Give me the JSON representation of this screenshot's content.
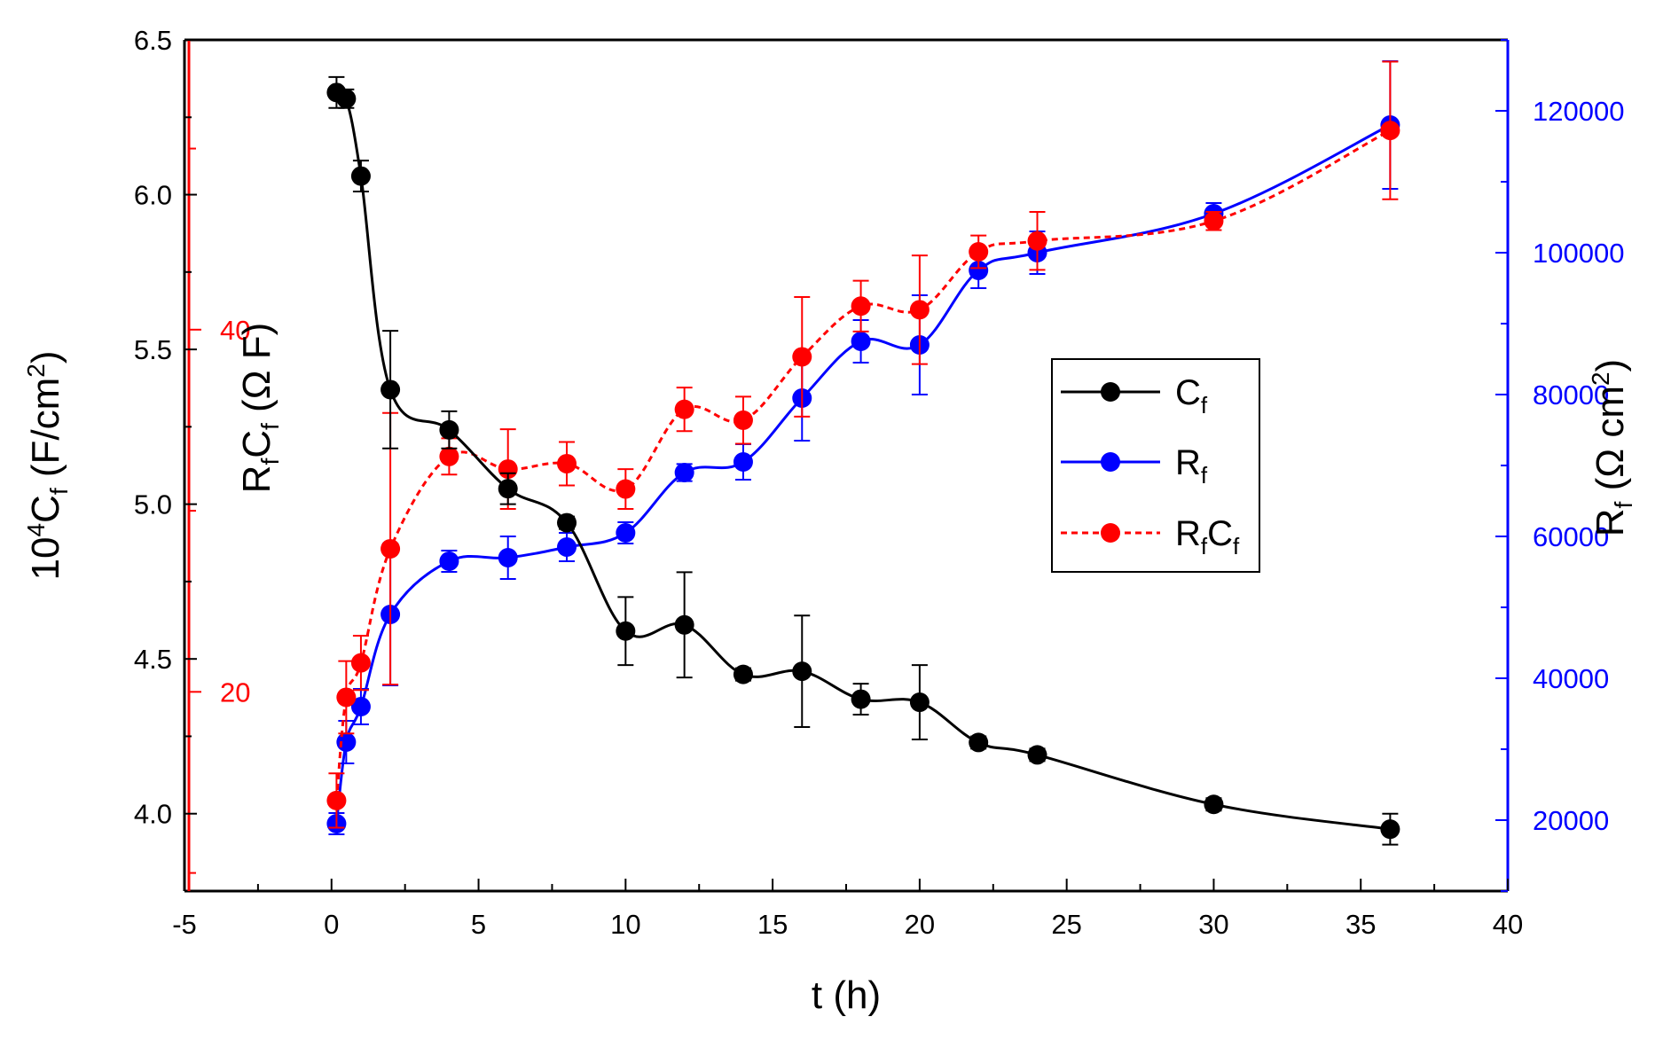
{
  "chart_data": {
    "type": "line",
    "title": "",
    "xlabel": "t (h)",
    "xlim": [
      -5,
      40
    ],
    "x_ticks": [
      "-5",
      "0",
      "5",
      "10",
      "15",
      "20",
      "25",
      "30",
      "35",
      "40"
    ],
    "axes": {
      "left": {
        "label_main": "10",
        "label_sup": "4",
        "label_c": "C",
        "label_sub": "f",
        "label_unit": " (F/cm",
        "label_unit_sup": "2",
        "label_close": ")",
        "ylim": [
          3.75,
          6.5
        ],
        "ticks": [
          "4.0",
          "4.5",
          "5.0",
          "5.5",
          "6.0",
          "6.5"
        ],
        "color": "#000000"
      },
      "offset": {
        "label_r": "R",
        "label_r_sub": "f",
        "label_c": "C",
        "label_c_sub": "f",
        "label_unit": " (Ω F)",
        "ylim": [
          9.0,
          56.0
        ],
        "ticks": [
          "20",
          "40"
        ],
        "color": "#ff0000"
      },
      "right": {
        "label_r": "R",
        "label_r_sub": "f",
        "label_unit": " (Ω cm",
        "label_unit_sup": "2",
        "label_close": ")",
        "ylim": [
          10000,
          130000
        ],
        "ticks": [
          "20000",
          "40000",
          "60000",
          "80000",
          "100000",
          "120000"
        ],
        "color": "#0000ff"
      }
    },
    "series": [
      {
        "name": "C",
        "name_sub": "f",
        "axis": "left",
        "color": "#000000",
        "dashed": false,
        "x": [
          0.17,
          0.5,
          1,
          2,
          4,
          6,
          8,
          10,
          12,
          14,
          16,
          18,
          20,
          22,
          24,
          30,
          36
        ],
        "y": [
          6.33,
          6.31,
          6.06,
          5.37,
          5.24,
          5.05,
          4.94,
          4.59,
          4.61,
          4.45,
          4.46,
          4.37,
          4.36,
          4.23,
          4.19,
          4.03,
          3.95
        ],
        "err": [
          0.05,
          0.03,
          0.05,
          0.19,
          0.06,
          0.05,
          0.02,
          0.11,
          0.17,
          0.02,
          0.18,
          0.05,
          0.12,
          0.02,
          0.02,
          0.02,
          0.05
        ]
      },
      {
        "name": "R",
        "name_sub": "f",
        "axis": "right",
        "color": "#0000ff",
        "dashed": false,
        "x": [
          0.17,
          0.5,
          1,
          2,
          4,
          6,
          8,
          10,
          12,
          14,
          16,
          18,
          20,
          22,
          24,
          30,
          36
        ],
        "y": [
          19500,
          31000,
          36000,
          49000,
          56500,
          57000,
          58500,
          60500,
          69000,
          70500,
          79500,
          87500,
          87000,
          97500,
          100000,
          105500,
          118000
        ],
        "err": [
          1500,
          3000,
          2500,
          10000,
          1500,
          3000,
          2000,
          1500,
          1200,
          2500,
          6000,
          3000,
          7000,
          2500,
          3000,
          1500,
          9000
        ]
      },
      {
        "name": "R",
        "name_sub": "f",
        "name2": "C",
        "name2_sub": "f",
        "axis": "offset",
        "color": "#ff0000",
        "dashed": true,
        "x": [
          0.17,
          0.5,
          1,
          2,
          4,
          6,
          8,
          10,
          12,
          14,
          16,
          18,
          20,
          22,
          24,
          30,
          36
        ],
        "y": [
          14.0,
          19.7,
          21.6,
          27.9,
          33.0,
          32.3,
          32.6,
          31.2,
          35.6,
          35.0,
          38.5,
          41.3,
          41.1,
          44.3,
          44.9,
          46.0,
          51.0
        ],
        "err": [
          1.5,
          2.0,
          1.5,
          7.5,
          1.0,
          2.2,
          1.2,
          1.1,
          1.2,
          1.3,
          3.3,
          1.4,
          3.0,
          0.9,
          1.6,
          0.5,
          3.8
        ]
      }
    ],
    "legend_position": "center-right"
  }
}
